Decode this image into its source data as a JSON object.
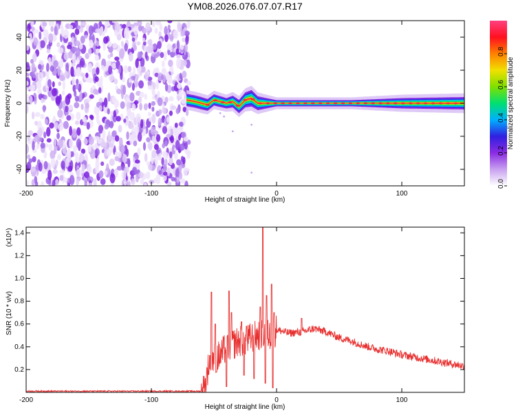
{
  "title": "YM08.2026.076.07.07.R17",
  "chart_data": [
    {
      "type": "heatmap",
      "title": "YM08.2026.076.07.07.R17",
      "xlabel": "Height of straight line (km)",
      "ylabel": "Frequency (Hz)",
      "xlim": [
        -200,
        150
      ],
      "ylim": [
        -50,
        50
      ],
      "x_ticks": [
        -200,
        -100,
        0,
        100
      ],
      "y_ticks": [
        -40,
        -20,
        0,
        20,
        40
      ],
      "grid": false,
      "colorbar": {
        "label": "Normalized spectral amplitude",
        "range": [
          0.0,
          1.0
        ],
        "ticks": [
          0.0,
          0.2,
          0.4,
          0.6,
          0.8
        ],
        "colormap": [
          "#ffffff",
          "#c8a0f0",
          "#8a2be2",
          "#3020e0",
          "#00b0ff",
          "#00e070",
          "#80e000",
          "#f0e000",
          "#ff8000",
          "#ff1020",
          "#ff4080"
        ]
      },
      "regions": [
        {
          "name": "noise",
          "x_range": [
            -200,
            -70
          ],
          "y_range": [
            -50,
            50
          ],
          "amplitude": "scattered 0.1-0.3"
        },
        {
          "name": "signal band",
          "x_range": [
            -72,
            150
          ],
          "freq_center": 0,
          "freq_width": 5,
          "peak_amplitude": 1.0
        }
      ],
      "band_center_freq": [
        [
          -72,
          2
        ],
        [
          -65,
          1
        ],
        [
          -55,
          -1
        ],
        [
          -50,
          2
        ],
        [
          -45,
          1
        ],
        [
          -40,
          0
        ],
        [
          -35,
          1
        ],
        [
          -30,
          -2
        ],
        [
          -25,
          2
        ],
        [
          -20,
          3
        ],
        [
          -15,
          0
        ],
        [
          -10,
          0
        ],
        [
          0,
          0
        ],
        [
          50,
          0
        ],
        [
          100,
          0
        ],
        [
          150,
          0
        ]
      ],
      "band_halfwidth": [
        [
          -72,
          3
        ],
        [
          -60,
          3
        ],
        [
          -40,
          2.5
        ],
        [
          -20,
          4
        ],
        [
          0,
          1.5
        ],
        [
          60,
          1.5
        ],
        [
          100,
          2.5
        ],
        [
          150,
          3
        ]
      ],
      "faint_points": [
        [
          -45,
          -6
        ],
        [
          -42,
          -8
        ],
        [
          -20,
          -13
        ],
        [
          -35,
          -17
        ],
        [
          -20,
          -42
        ]
      ]
    },
    {
      "type": "line",
      "xlabel": "Height of straight line (km)",
      "ylabel": "SNR (10 * v/v)",
      "y_multiplier": "(x10⁴)",
      "xlim": [
        -200,
        150
      ],
      "ylim": [
        0,
        1.45
      ],
      "x_ticks": [
        -200,
        -100,
        0,
        100
      ],
      "y_ticks": [
        0.2,
        0.4,
        0.6,
        0.8,
        1.0,
        1.2,
        1.4
      ],
      "grid": false,
      "series": [
        {
          "color": "#e83030",
          "envelope": [
            [
              -200,
              0.01
            ],
            [
              -60,
              0.01
            ],
            [
              -57,
              0.05
            ],
            [
              -55,
              0.2
            ],
            [
              -53,
              0.28
            ],
            [
              -50,
              0.3
            ],
            [
              -45,
              0.32
            ],
            [
              -40,
              0.4
            ],
            [
              -35,
              0.42
            ],
            [
              -30,
              0.45
            ],
            [
              -25,
              0.45
            ],
            [
              -20,
              0.48
            ],
            [
              -15,
              0.5
            ],
            [
              -10,
              0.52
            ],
            [
              -5,
              0.5
            ],
            [
              0,
              0.55
            ],
            [
              10,
              0.52
            ],
            [
              20,
              0.53
            ],
            [
              30,
              0.56
            ],
            [
              40,
              0.53
            ],
            [
              50,
              0.48
            ],
            [
              60,
              0.45
            ],
            [
              70,
              0.41
            ],
            [
              80,
              0.38
            ],
            [
              90,
              0.36
            ],
            [
              100,
              0.33
            ],
            [
              110,
              0.31
            ],
            [
              120,
              0.29
            ],
            [
              130,
              0.27
            ],
            [
              140,
              0.25
            ],
            [
              150,
              0.23
            ]
          ],
          "spikes": [
            [
              -52,
              0.88
            ],
            [
              -49,
              0.6
            ],
            [
              -38,
              0.89
            ],
            [
              -36,
              0.7
            ],
            [
              -28,
              0.62
            ],
            [
              -24,
              0.58
            ],
            [
              -13,
              0.75
            ],
            [
              -11,
              1.45
            ],
            [
              -8,
              0.85
            ],
            [
              -4,
              0.95
            ],
            [
              -2,
              0.7
            ],
            [
              20,
              0.65
            ]
          ],
          "dips": [
            [
              -48,
              0.18
            ],
            [
              -40,
              0.05
            ],
            [
              -26,
              0.15
            ],
            [
              -18,
              0.12
            ],
            [
              -9,
              0.08
            ],
            [
              -3,
              0.04
            ]
          ]
        }
      ]
    }
  ]
}
